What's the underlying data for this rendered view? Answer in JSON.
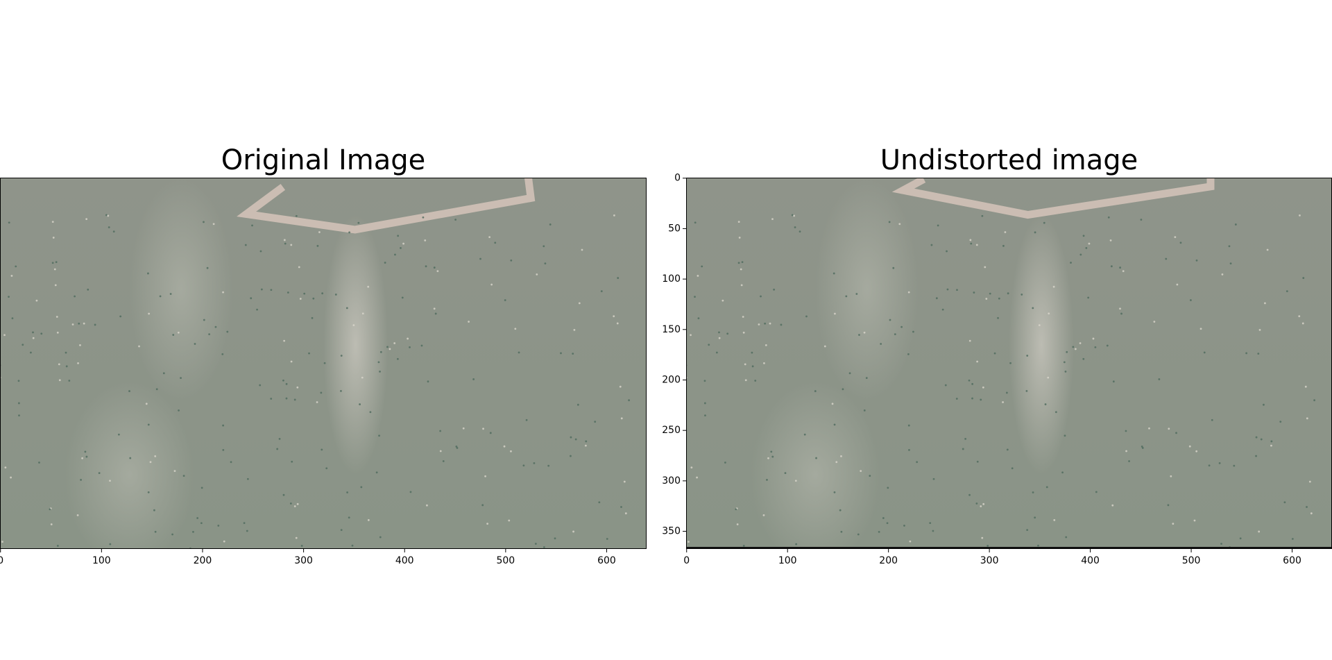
{
  "chart_data": [
    {
      "type": "image",
      "title": "Original Image",
      "xlim": [
        -0.5,
        639.5
      ],
      "ylim": [
        367.5,
        -0.5
      ],
      "xticks": [
        0,
        100,
        200,
        300,
        400,
        500,
        600
      ]
    },
    {
      "type": "image",
      "title": "Undistorted image",
      "xlim": [
        -0.5,
        639.5
      ],
      "ylim": [
        367.5,
        -0.5
      ],
      "xticks": [
        0,
        100,
        200,
        300,
        400,
        500,
        600
      ],
      "yticks": [
        0,
        50,
        100,
        150,
        200,
        250,
        300,
        350
      ]
    }
  ]
}
